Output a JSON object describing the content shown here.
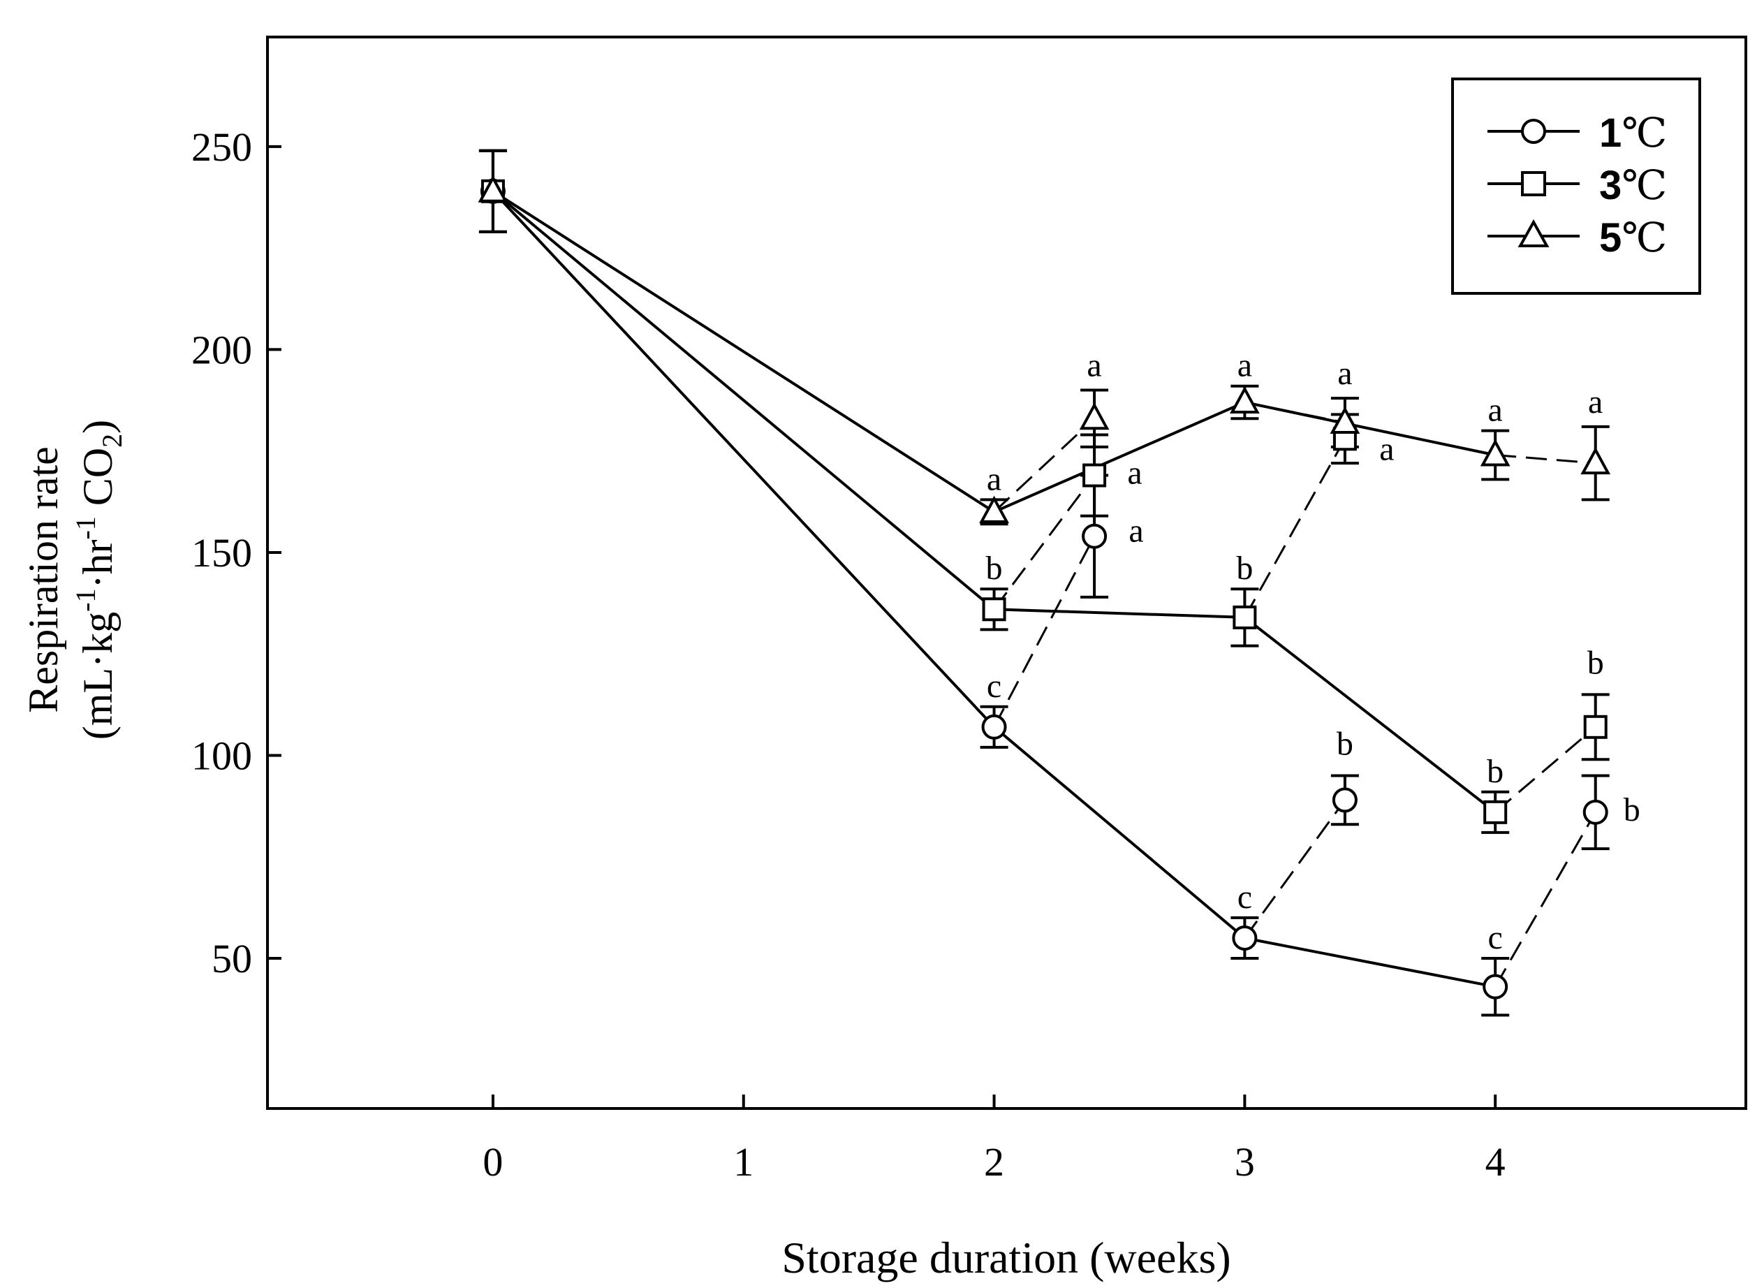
{
  "chart_data": {
    "type": "line",
    "title": "",
    "xlabel": "Storage duration (weeks)",
    "ylabel_line1": "Respiration rate",
    "ylabel_line2_parts": {
      "open": "(mL·kg",
      "sup1": "-1",
      "mid": "·hr",
      "sup2": "-1",
      "co": " CO",
      "sub": "2",
      "close": ")"
    },
    "xlim": [
      -0.9,
      5.0
    ],
    "ylim": [
      13,
      277
    ],
    "x_ticks": [
      0,
      1,
      2,
      3,
      4
    ],
    "x_tick_labels": [
      "0",
      "1",
      "2",
      "3",
      "4"
    ],
    "y_ticks": [
      50,
      100,
      150,
      200,
      250
    ],
    "y_tick_labels": [
      "50",
      "100",
      "150",
      "200",
      "250"
    ],
    "legend_position": "top-right",
    "series": [
      {
        "name": "1℃",
        "legend_num": "1",
        "legend_unit": "℃",
        "marker": "circle",
        "points": [
          {
            "x": 0,
            "y": 239,
            "err": 10
          },
          {
            "x": 2,
            "y": 107,
            "err": 5,
            "label": "c"
          },
          {
            "x": 3,
            "y": 55,
            "err": 5,
            "label": "c"
          },
          {
            "x": 4,
            "y": 43,
            "err": 7,
            "label": "c"
          }
        ],
        "recovery": [
          {
            "from": 1,
            "x": 2.4,
            "y": 154,
            "err": 15,
            "label": "a"
          },
          {
            "from": 2,
            "x": 3.4,
            "y": 89,
            "err": 6,
            "label": "b"
          },
          {
            "from": 3,
            "x": 4.4,
            "y": 86,
            "err": 9,
            "label": "b"
          }
        ]
      },
      {
        "name": "3℃",
        "legend_num": "3",
        "legend_unit": "℃",
        "marker": "square",
        "points": [
          {
            "x": 0,
            "y": 239,
            "err": 10
          },
          {
            "x": 2,
            "y": 136,
            "err": 5,
            "label": "b"
          },
          {
            "x": 3,
            "y": 134,
            "err": 7,
            "label": "b"
          },
          {
            "x": 4,
            "y": 86,
            "err": 5,
            "label": "b"
          }
        ],
        "recovery": [
          {
            "from": 1,
            "x": 2.4,
            "y": 169,
            "err": 10,
            "label": "a"
          },
          {
            "from": 2,
            "x": 3.4,
            "y": 178,
            "err": 6,
            "label": "a"
          },
          {
            "from": 3,
            "x": 4.4,
            "y": 107,
            "err": 8,
            "label": "b"
          }
        ]
      },
      {
        "name": "5℃",
        "legend_num": "5",
        "legend_unit": "℃",
        "marker": "triangle",
        "points": [
          {
            "x": 0,
            "y": 239,
            "err": 10
          },
          {
            "x": 2,
            "y": 160,
            "err": 3,
            "label": "a"
          },
          {
            "x": 3,
            "y": 187,
            "err": 4,
            "label": "a"
          },
          {
            "x": 4,
            "y": 174,
            "err": 6,
            "label": "a"
          }
        ],
        "recovery": [
          {
            "from": 1,
            "x": 2.4,
            "y": 183,
            "err": 7,
            "label": "a"
          },
          {
            "from": 2,
            "x": 3.4,
            "y": 182,
            "err": 6,
            "label": "a"
          },
          {
            "from": 3,
            "x": 4.4,
            "y": 172,
            "err": 9,
            "label": "a"
          }
        ]
      }
    ]
  }
}
